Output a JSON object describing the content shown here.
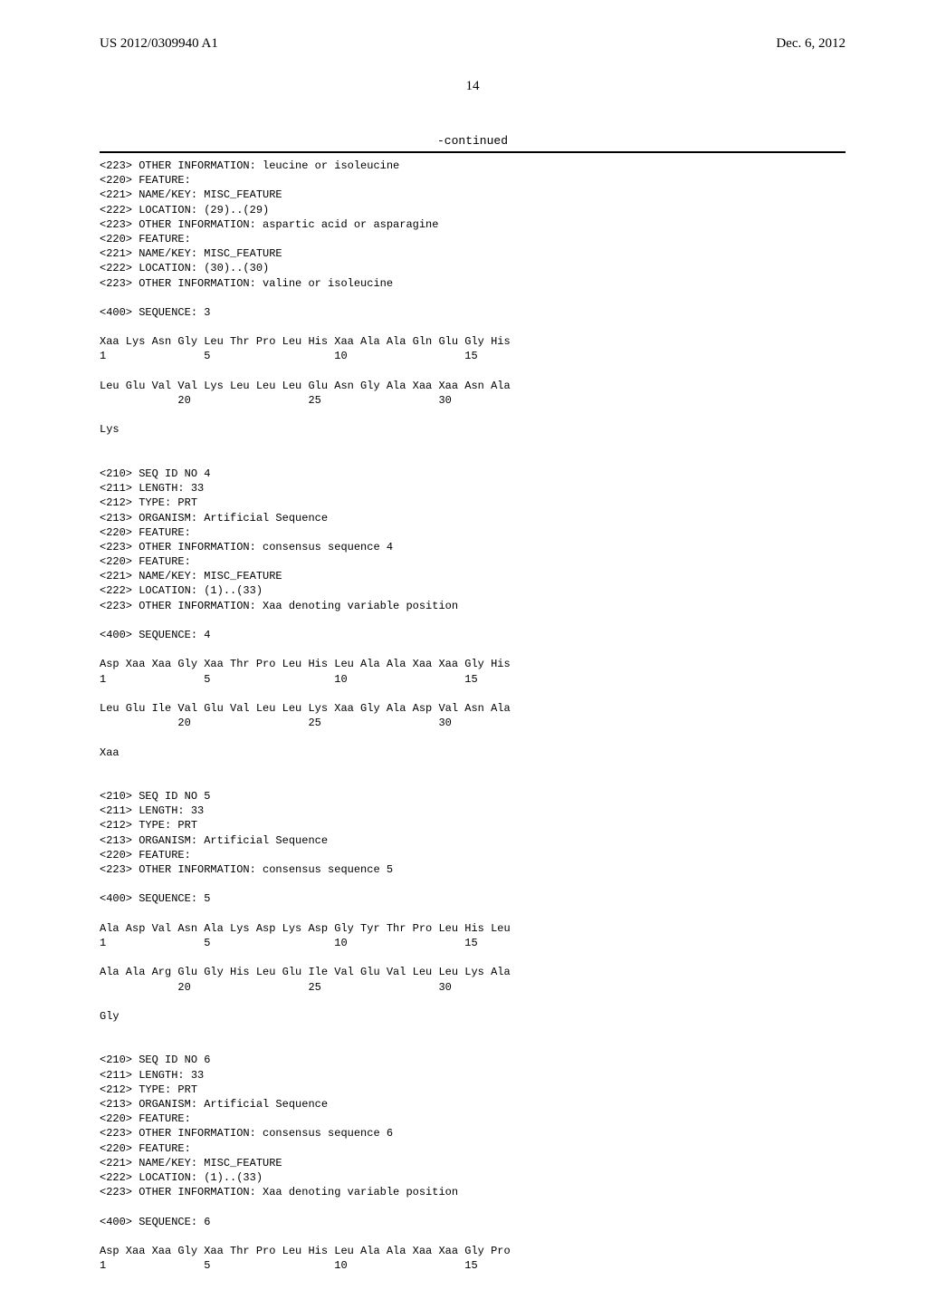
{
  "header": {
    "publication_number": "US 2012/0309940 A1",
    "publication_date": "Dec. 6, 2012"
  },
  "page_number": "14",
  "continued_label": "-continued",
  "listing": "<223> OTHER INFORMATION: leucine or isoleucine\n<220> FEATURE:\n<221> NAME/KEY: MISC_FEATURE\n<222> LOCATION: (29)..(29)\n<223> OTHER INFORMATION: aspartic acid or asparagine\n<220> FEATURE:\n<221> NAME/KEY: MISC_FEATURE\n<222> LOCATION: (30)..(30)\n<223> OTHER INFORMATION: valine or isoleucine\n\n<400> SEQUENCE: 3\n\nXaa Lys Asn Gly Leu Thr Pro Leu His Xaa Ala Ala Gln Glu Gly His\n1               5                   10                  15\n\nLeu Glu Val Val Lys Leu Leu Leu Glu Asn Gly Ala Xaa Xaa Asn Ala\n            20                  25                  30\n\nLys\n\n\n<210> SEQ ID NO 4\n<211> LENGTH: 33\n<212> TYPE: PRT\n<213> ORGANISM: Artificial Sequence\n<220> FEATURE:\n<223> OTHER INFORMATION: consensus sequence 4\n<220> FEATURE:\n<221> NAME/KEY: MISC_FEATURE\n<222> LOCATION: (1)..(33)\n<223> OTHER INFORMATION: Xaa denoting variable position\n\n<400> SEQUENCE: 4\n\nAsp Xaa Xaa Gly Xaa Thr Pro Leu His Leu Ala Ala Xaa Xaa Gly His\n1               5                   10                  15\n\nLeu Glu Ile Val Glu Val Leu Leu Lys Xaa Gly Ala Asp Val Asn Ala\n            20                  25                  30\n\nXaa\n\n\n<210> SEQ ID NO 5\n<211> LENGTH: 33\n<212> TYPE: PRT\n<213> ORGANISM: Artificial Sequence\n<220> FEATURE:\n<223> OTHER INFORMATION: consensus sequence 5\n\n<400> SEQUENCE: 5\n\nAla Asp Val Asn Ala Lys Asp Lys Asp Gly Tyr Thr Pro Leu His Leu\n1               5                   10                  15\n\nAla Ala Arg Glu Gly His Leu Glu Ile Val Glu Val Leu Leu Lys Ala\n            20                  25                  30\n\nGly\n\n\n<210> SEQ ID NO 6\n<211> LENGTH: 33\n<212> TYPE: PRT\n<213> ORGANISM: Artificial Sequence\n<220> FEATURE:\n<223> OTHER INFORMATION: consensus sequence 6\n<220> FEATURE:\n<221> NAME/KEY: MISC_FEATURE\n<222> LOCATION: (1)..(33)\n<223> OTHER INFORMATION: Xaa denoting variable position\n\n<400> SEQUENCE: 6\n\nAsp Xaa Xaa Gly Xaa Thr Pro Leu His Leu Ala Ala Xaa Xaa Gly Pro\n1               5                   10                  15"
}
